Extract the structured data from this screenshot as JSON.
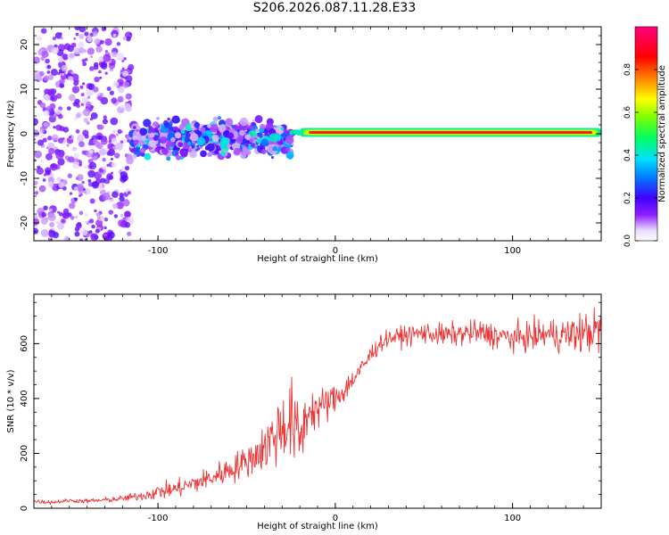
{
  "title": "S206.2026.087.11.28.E33",
  "chart_data": [
    {
      "type": "heatmap",
      "title": "S206.2026.087.11.28.E33",
      "xlabel": "Height of straight line (km)",
      "ylabel": "Frequency (Hz)",
      "xlim": [
        -170,
        150
      ],
      "ylim": [
        -24,
        24
      ],
      "xticks": [
        -100,
        0,
        100
      ],
      "yticks": [
        -20,
        -10,
        0,
        10,
        20
      ],
      "colorbar": {
        "label": "Normalized spectral amplitude",
        "range": [
          0.0,
          1.0
        ],
        "ticks": [
          0.0,
          0.2,
          0.4,
          0.6,
          0.8
        ],
        "tick_labels": [
          "0.0",
          "0.2",
          "0.4",
          "0.6",
          "0.8"
        ],
        "colormap": "rainbow (white-purple-blue-cyan-green-yellow-red-magenta)"
      },
      "description_points": [
        {
          "x_range": [
            -170,
            -115
          ],
          "freq_spread": 24,
          "amplitude": 0.1
        },
        {
          "x_range": [
            -115,
            -25
          ],
          "freq_spread": 5,
          "amplitude": 0.3
        },
        {
          "x_range": [
            -25,
            150
          ],
          "freq_center": 0.3,
          "freq_spread": 0.8,
          "amplitude": 0.9
        }
      ]
    },
    {
      "type": "line",
      "title": "",
      "xlabel": "Height of straight line (km)",
      "ylabel": "SNR (10 * v/v)",
      "xlim": [
        -170,
        150
      ],
      "ylim": [
        0,
        780
      ],
      "xticks": [
        -100,
        0,
        100
      ],
      "yticks": [
        0,
        200,
        400,
        600
      ],
      "color": "#ee3333",
      "series": [
        {
          "name": "SNR",
          "x": [
            -170,
            -160,
            -150,
            -140,
            -130,
            -120,
            -110,
            -100,
            -90,
            -80,
            -70,
            -60,
            -50,
            -40,
            -35,
            -30,
            -25,
            -20,
            -15,
            -10,
            -5,
            0,
            5,
            10,
            15,
            20,
            25,
            30,
            40,
            50,
            60,
            70,
            80,
            90,
            100,
            110,
            120,
            130,
            140,
            150
          ],
          "values": [
            25,
            22,
            28,
            26,
            30,
            35,
            45,
            60,
            70,
            90,
            110,
            140,
            170,
            220,
            260,
            300,
            320,
            250,
            360,
            360,
            380,
            400,
            430,
            470,
            510,
            560,
            600,
            620,
            630,
            640,
            630,
            635,
            640,
            630,
            620,
            625,
            635,
            630,
            640,
            650
          ],
          "spread": [
            8,
            8,
            8,
            9,
            10,
            12,
            18,
            30,
            35,
            40,
            45,
            55,
            60,
            90,
            130,
            150,
            160,
            140,
            90,
            80,
            70,
            60,
            50,
            45,
            40,
            40,
            35,
            30,
            40,
            40,
            45,
            45,
            50,
            50,
            55,
            55,
            60,
            70,
            80,
            90
          ]
        }
      ]
    }
  ]
}
